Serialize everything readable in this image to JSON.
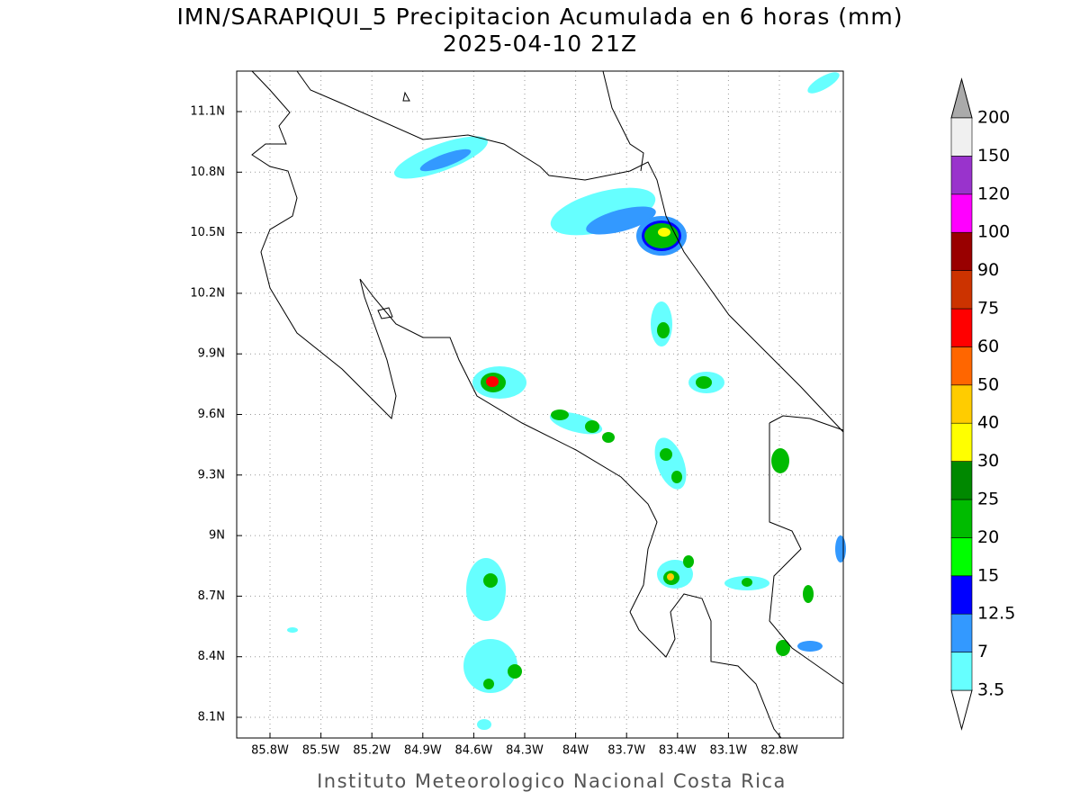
{
  "title": {
    "line1": "IMN/SARAPIQUI_5 Precipitacion Acumulada en 6 horas (mm)",
    "line2": "2025-04-10 21Z"
  },
  "map": {
    "lon_ticks": [
      "85.8W",
      "85.5W",
      "85.2W",
      "84.9W",
      "84.6W",
      "84.3W",
      "84W",
      "83.7W",
      "83.4W",
      "83.1W",
      "82.8W"
    ],
    "lat_ticks": [
      "11.1N",
      "10.8N",
      "10.5N",
      "10.2N",
      "9.9N",
      "9.6N",
      "9.3N",
      "9N",
      "8.7N",
      "8.4N",
      "8.1N"
    ]
  },
  "colorbar": {
    "levels": [
      3.5,
      7,
      12.5,
      15,
      20,
      25,
      30,
      40,
      50,
      60,
      75,
      90,
      100,
      120,
      150,
      200
    ],
    "colors": [
      "#66ffff",
      "#3399ff",
      "#0000ff",
      "#00ff00",
      "#00bb00",
      "#008800",
      "#ffff00",
      "#ffcc00",
      "#ff6600",
      "#ff0000",
      "#cc3300",
      "#990000",
      "#ff00ff",
      "#9933cc",
      "#f0f0f0"
    ],
    "over_color": "#aaaaaa",
    "under_color": "#ffffff"
  },
  "footer": "Instituto Meteorologico Nacional Costa Rica"
}
